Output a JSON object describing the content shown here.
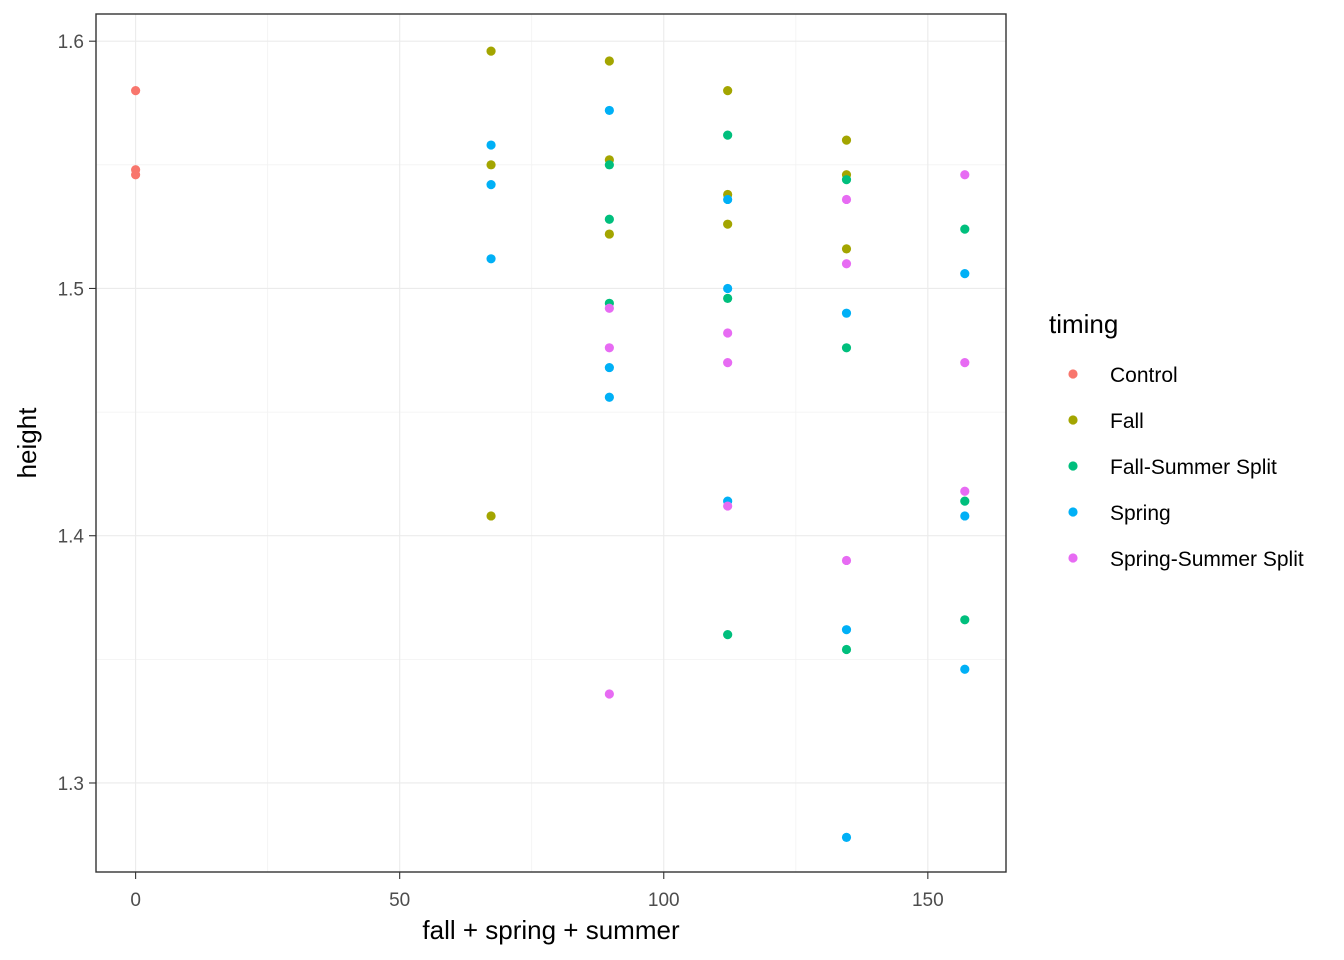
{
  "chart_data": {
    "type": "scatter",
    "title": "",
    "xlabel": "fall + spring + summer",
    "ylabel": "height",
    "xlim": [
      -7.5,
      164.8
    ],
    "ylim": [
      1.264,
      1.611
    ],
    "x_ticks": [
      0,
      50,
      100,
      150
    ],
    "x_minor_ticks": [
      25,
      75,
      125
    ],
    "y_ticks": [
      1.3,
      1.4,
      1.5,
      1.6
    ],
    "y_tick_labels": [
      "1.3",
      "1.4",
      "1.5",
      "1.6"
    ],
    "y_minor_ticks": [
      1.35,
      1.45,
      1.55
    ],
    "grid": true,
    "legend": {
      "title": "timing",
      "position": "right"
    },
    "series": [
      {
        "name": "Control",
        "color": "#F8766D",
        "points": [
          [
            0,
            1.58
          ],
          [
            0,
            1.548
          ],
          [
            0,
            1.546
          ]
        ]
      },
      {
        "name": "Fall",
        "color": "#A3A500",
        "points": [
          [
            67.3,
            1.596
          ],
          [
            67.3,
            1.55
          ],
          [
            67.3,
            1.408
          ],
          [
            89.7,
            1.592
          ],
          [
            89.7,
            1.552
          ],
          [
            89.7,
            1.522
          ],
          [
            112.1,
            1.58
          ],
          [
            112.1,
            1.538
          ],
          [
            112.1,
            1.526
          ],
          [
            134.6,
            1.56
          ],
          [
            134.6,
            1.546
          ],
          [
            134.6,
            1.516
          ]
        ]
      },
      {
        "name": "Fall-Summer Split",
        "color": "#00BF7D",
        "points": [
          [
            89.7,
            1.55
          ],
          [
            89.7,
            1.528
          ],
          [
            89.7,
            1.494
          ],
          [
            112.1,
            1.562
          ],
          [
            112.1,
            1.496
          ],
          [
            112.1,
            1.36
          ],
          [
            134.6,
            1.544
          ],
          [
            134.6,
            1.476
          ],
          [
            134.6,
            1.354
          ],
          [
            157.0,
            1.524
          ],
          [
            157.0,
            1.414
          ],
          [
            157.0,
            1.366
          ]
        ]
      },
      {
        "name": "Spring",
        "color": "#00B0F6",
        "points": [
          [
            67.3,
            1.558
          ],
          [
            67.3,
            1.542
          ],
          [
            67.3,
            1.512
          ],
          [
            89.7,
            1.572
          ],
          [
            89.7,
            1.468
          ],
          [
            89.7,
            1.456
          ],
          [
            112.1,
            1.536
          ],
          [
            112.1,
            1.5
          ],
          [
            112.1,
            1.414
          ],
          [
            134.6,
            1.49
          ],
          [
            134.6,
            1.362
          ],
          [
            134.6,
            1.278
          ],
          [
            157.0,
            1.506
          ],
          [
            157.0,
            1.408
          ],
          [
            157.0,
            1.346
          ]
        ]
      },
      {
        "name": "Spring-Summer Split",
        "color": "#E76BF3",
        "points": [
          [
            89.7,
            1.492
          ],
          [
            89.7,
            1.476
          ],
          [
            89.7,
            1.336
          ],
          [
            112.1,
            1.482
          ],
          [
            112.1,
            1.47
          ],
          [
            112.1,
            1.412
          ],
          [
            134.6,
            1.536
          ],
          [
            134.6,
            1.51
          ],
          [
            134.6,
            1.39
          ],
          [
            157.0,
            1.546
          ],
          [
            157.0,
            1.47
          ],
          [
            157.0,
            1.418
          ]
        ]
      }
    ]
  }
}
